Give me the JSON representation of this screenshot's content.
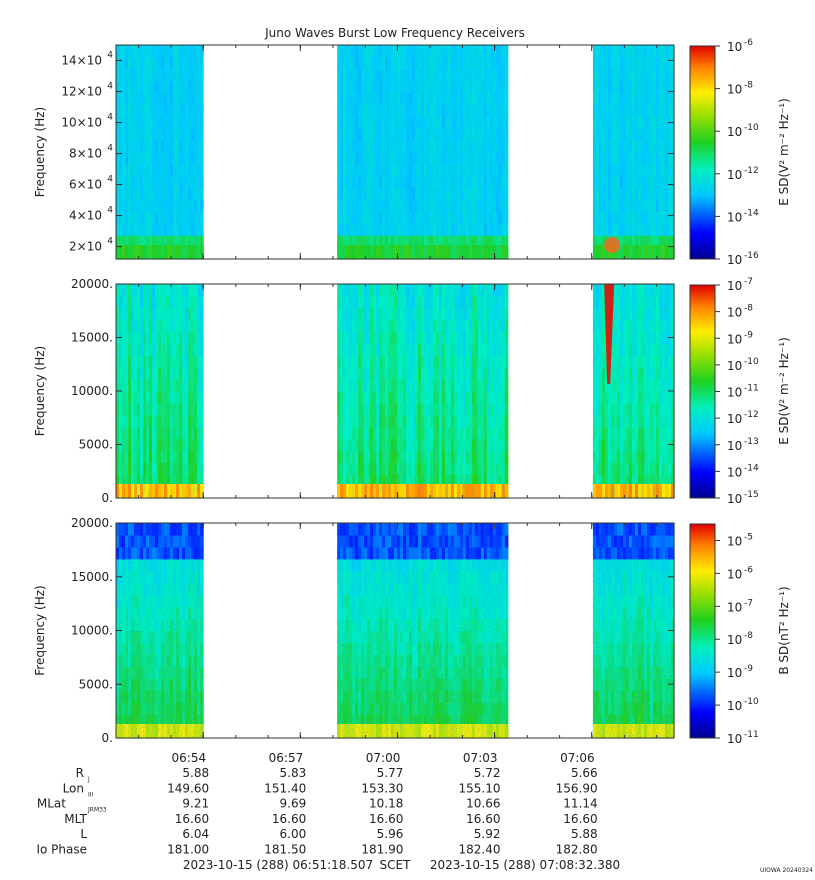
{
  "chart_data": {
    "type": "heatmap",
    "title": "Juno Waves Burst Low Frequency Receivers",
    "credit": "UIOWA 20240324",
    "panels": [
      {
        "ylabel": "Frequency (Hz)",
        "ytick_labels": [
          {
            "mant": "2×10",
            "exp": "4",
            "v": 20000
          },
          {
            "mant": "4×10",
            "exp": "4",
            "v": 40000
          },
          {
            "mant": "6×10",
            "exp": "4",
            "v": 60000
          },
          {
            "mant": "8×10",
            "exp": "4",
            "v": 80000
          },
          {
            "mant": "10×10",
            "exp": "4",
            "v": 100000
          },
          {
            "mant": "12×10",
            "exp": "4",
            "v": 120000
          },
          {
            "mant": "14×10",
            "exp": "4",
            "v": 140000
          }
        ],
        "ylim": [
          12000,
          150000
        ],
        "colorbar_label": "E SD(V² m⁻² Hz⁻¹)",
        "colorbar_ticks": [
          {
            "base": "10",
            "exp": "-16",
            "v": -16
          },
          {
            "base": "10",
            "exp": "-14",
            "v": -14
          },
          {
            "base": "10",
            "exp": "-12",
            "v": -12
          },
          {
            "base": "10",
            "exp": "-10",
            "v": -10
          },
          {
            "base": "10",
            "exp": "-8",
            "v": -8
          },
          {
            "base": "10",
            "exp": "-6",
            "v": -6
          }
        ],
        "cbar_range": [
          -16,
          -6
        ]
      },
      {
        "ylabel": "Frequency (Hz)",
        "ytick_labels": [
          {
            "mant": "0.",
            "exp": "",
            "v": 0
          },
          {
            "mant": "5000.",
            "exp": "",
            "v": 5000
          },
          {
            "mant": "10000.",
            "exp": "",
            "v": 10000
          },
          {
            "mant": "15000.",
            "exp": "",
            "v": 15000
          },
          {
            "mant": "20000.",
            "exp": "",
            "v": 20000
          }
        ],
        "ylim": [
          0,
          20000
        ],
        "colorbar_label": "E SD(V² m⁻² Hz⁻¹)",
        "colorbar_ticks": [
          {
            "base": "10",
            "exp": "-15",
            "v": -15
          },
          {
            "base": "10",
            "exp": "-14",
            "v": -14
          },
          {
            "base": "10",
            "exp": "-13",
            "v": -13
          },
          {
            "base": "10",
            "exp": "-12",
            "v": -12
          },
          {
            "base": "10",
            "exp": "-11",
            "v": -11
          },
          {
            "base": "10",
            "exp": "-10",
            "v": -10
          },
          {
            "base": "10",
            "exp": "-9",
            "v": -9
          },
          {
            "base": "10",
            "exp": "-8",
            "v": -8
          },
          {
            "base": "10",
            "exp": "-7",
            "v": -7
          }
        ],
        "cbar_range": [
          -15,
          -7
        ]
      },
      {
        "ylabel": "Frequency (Hz)",
        "ytick_labels": [
          {
            "mant": "0.",
            "exp": "",
            "v": 0
          },
          {
            "mant": "5000.",
            "exp": "",
            "v": 5000
          },
          {
            "mant": "10000.",
            "exp": "",
            "v": 10000
          },
          {
            "mant": "15000.",
            "exp": "",
            "v": 15000
          },
          {
            "mant": "20000.",
            "exp": "",
            "v": 20000
          }
        ],
        "ylim": [
          0,
          20000
        ],
        "colorbar_label": "B SD(nT² Hz⁻¹)",
        "colorbar_ticks": [
          {
            "base": "10",
            "exp": "-11",
            "v": -11
          },
          {
            "base": "10",
            "exp": "-10",
            "v": -10
          },
          {
            "base": "10",
            "exp": "-9",
            "v": -9
          },
          {
            "base": "10",
            "exp": "-8",
            "v": -8
          },
          {
            "base": "10",
            "exp": "-7",
            "v": -7
          },
          {
            "base": "10",
            "exp": "-6",
            "v": -6
          },
          {
            "base": "10",
            "exp": "-5",
            "v": -5
          }
        ],
        "cbar_range": [
          -11,
          -4.5
        ]
      }
    ],
    "xlim_minutes": [
      0,
      17.233
    ],
    "time_start": "2023-10-15 (288) 06:51:18.507",
    "time_end": "2023-10-15 (288) 07:08:32.380",
    "time_label": "SCET",
    "data_intervals_minutes": [
      [
        0,
        2.69
      ],
      [
        6.83,
        12.1
      ],
      [
        14.73,
        17.233
      ]
    ],
    "xticks": [
      {
        "label": "06:54",
        "t": 2.69
      },
      {
        "label": "06:57",
        "t": 5.69
      },
      {
        "label": "07:00",
        "t": 8.69
      },
      {
        "label": "07:03",
        "t": 11.69
      },
      {
        "label": "07:06",
        "t": 14.69
      }
    ],
    "ephemeris_rows": [
      {
        "name": "R",
        "sub": "J",
        "values": [
          "5.88",
          "5.83",
          "5.77",
          "5.72",
          "5.66"
        ]
      },
      {
        "name": "Lon",
        "sub": "III",
        "values": [
          "149.60",
          "151.40",
          "153.30",
          "155.10",
          "156.90"
        ]
      },
      {
        "name": "MLat",
        "sub": "JRM33",
        "values": [
          "9.21",
          "9.69",
          "10.18",
          "10.66",
          "11.14"
        ]
      },
      {
        "name": "MLT",
        "sub": "",
        "values": [
          "16.60",
          "16.60",
          "16.60",
          "16.60",
          "16.60"
        ]
      },
      {
        "name": "L",
        "sub": "",
        "values": [
          "6.04",
          "6.00",
          "5.96",
          "5.92",
          "5.88"
        ]
      },
      {
        "name": "Io Phase",
        "sub": "",
        "values": [
          "181.00",
          "181.50",
          "181.90",
          "182.40",
          "182.80"
        ]
      }
    ]
  }
}
